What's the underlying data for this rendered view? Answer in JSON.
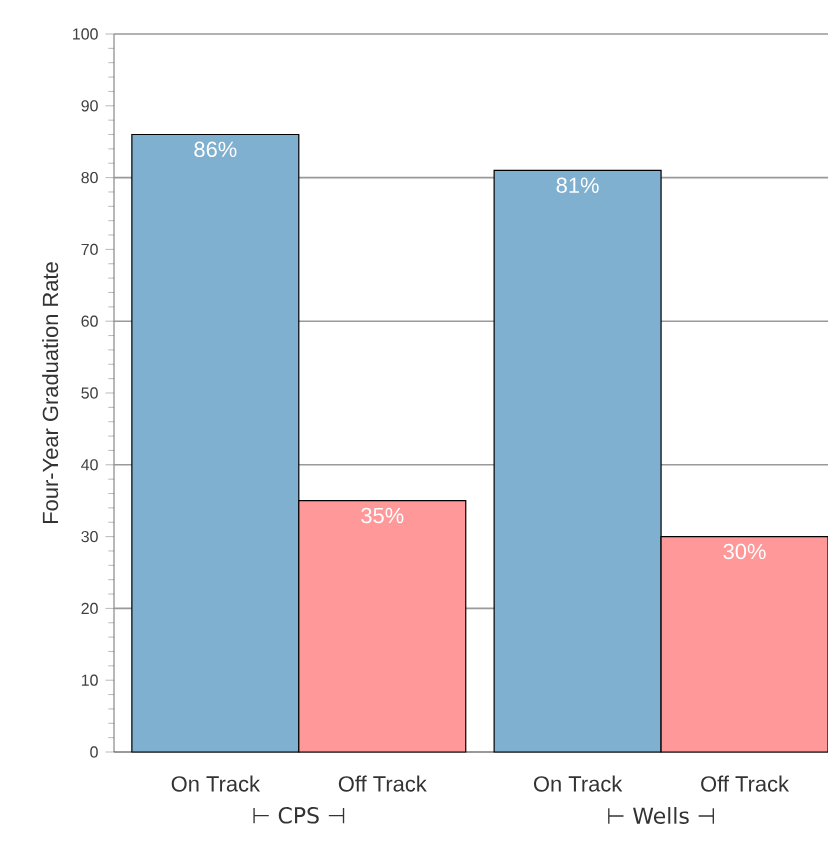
{
  "chart_data": {
    "type": "bar",
    "ylabel": "Four-Year Graduation Rate",
    "categories": [
      "On Track",
      "Off Track",
      "On Track",
      "Off Track"
    ],
    "values": [
      86,
      35,
      81,
      30
    ],
    "value_labels": [
      "86%",
      "35%",
      "81%",
      "30%"
    ],
    "colors": [
      "#7fb0d0",
      "#ff9999",
      "#7fb0d0",
      "#ff9999"
    ],
    "ylim": [
      0,
      100
    ],
    "yticks": [
      0,
      10,
      20,
      30,
      40,
      50,
      60,
      70,
      80,
      90,
      100
    ],
    "grid": "y",
    "annotations": [
      "⊢ CPS ⊣",
      "⊢ Wells ⊣"
    ]
  }
}
